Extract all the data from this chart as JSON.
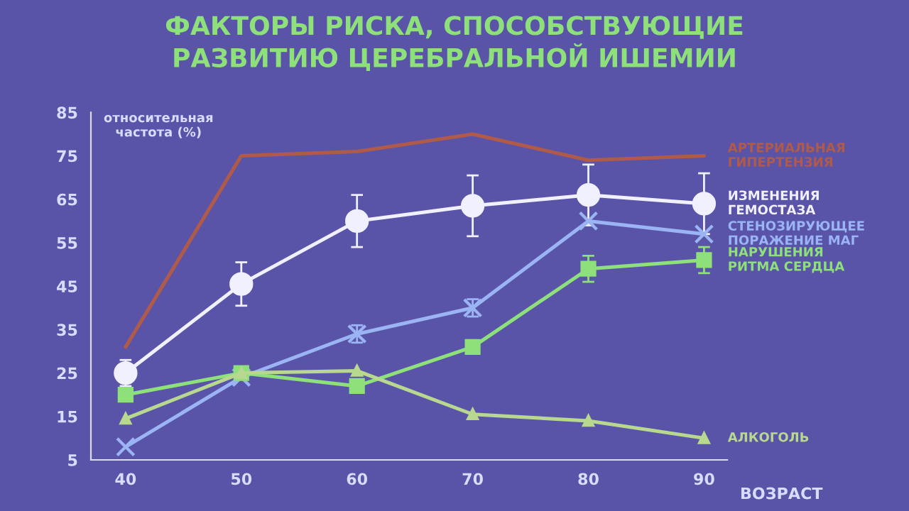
{
  "chart_data": {
    "type": "line",
    "title": "ФАКТОРЫ РИСКА, СПОСОБСТВУЮЩИЕ\nРАЗВИТИЮ ЦЕРЕБРАЛЬНОЙ ИШЕМИИ",
    "ylabel": "относительная\nчастота (%)",
    "xlabel": "ВОЗРАСТ",
    "x": [
      40,
      50,
      60,
      70,
      80,
      90
    ],
    "xlim": [
      37,
      92
    ],
    "xticks": [
      40,
      50,
      60,
      70,
      80,
      90
    ],
    "ylim": [
      5,
      85
    ],
    "yticks": [
      5,
      15,
      25,
      35,
      45,
      55,
      65,
      75,
      85
    ],
    "grid": false,
    "legend": false,
    "series": [
      {
        "name": "АРТЕРИАЛЬНАЯ\nГИПЕРТЕНЗИЯ",
        "color": "#b05a4a",
        "marker": "none",
        "values": [
          31,
          75,
          76,
          80,
          74,
          75
        ]
      },
      {
        "name": "ИЗМЕНЕНИЯ\nГЕМОСТАЗА",
        "color": "#f0f0ff",
        "marker": "circle",
        "values": [
          25,
          45.5,
          60,
          63.5,
          66,
          64
        ],
        "errors": [
          3,
          5,
          6,
          7,
          7,
          7
        ]
      },
      {
        "name": "СТЕНОЗИРУЮЩЕЕ\nПОРАЖЕНИЕ МАГ",
        "color": "#9ab4f4",
        "marker": "cross",
        "values": [
          8,
          24,
          34,
          40,
          60,
          57
        ],
        "errors": [
          null,
          null,
          2,
          2,
          null,
          null
        ]
      },
      {
        "name": "НАРУШЕНИЯ\nРИТМА СЕРДЦА",
        "color": "#8ee07a",
        "marker": "square",
        "values": [
          20,
          25,
          22,
          31,
          49,
          51
        ],
        "errors": [
          null,
          null,
          null,
          null,
          3,
          3
        ]
      },
      {
        "name": "АЛКОГОЛЬ",
        "color": "#b8d890",
        "marker": "triangle",
        "values": [
          14.5,
          25,
          25.5,
          15.5,
          14,
          10
        ]
      }
    ]
  }
}
